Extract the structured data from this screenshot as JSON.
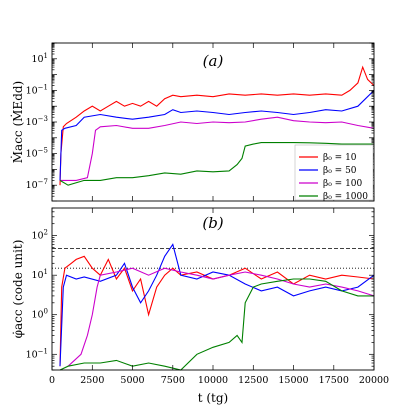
{
  "chart_data": [
    {
      "type": "line",
      "panel_label": "(a)",
      "ylabel": "Ṁacc (ṀEdd)",
      "yscale": "log",
      "xlim": [
        0,
        20000
      ],
      "ylim": [
        1e-08,
        100
      ],
      "yticks": [
        {
          "v": 10,
          "l": "10",
          "e": "1"
        },
        {
          "v": 0.1,
          "l": "10",
          "e": "−1"
        },
        {
          "v": 0.001,
          "l": "10",
          "e": "−3"
        },
        {
          "v": 1e-05,
          "l": "10",
          "e": "−5"
        },
        {
          "v": 1e-07,
          "l": "10",
          "e": "−7"
        }
      ],
      "legend": {
        "placement": "lower-right"
      },
      "series": [
        {
          "name": "β₀ = 10",
          "color": "#ff0000",
          "x": [
            0,
            500,
            550,
            700,
            900,
            1500,
            2000,
            2500,
            3000,
            3500,
            4000,
            4500,
            5000,
            5500,
            6000,
            6500,
            7000,
            7500,
            8000,
            9000,
            10000,
            11000,
            12000,
            13000,
            14000,
            15000,
            16000,
            17000,
            18000,
            18500,
            19000,
            19300,
            19600,
            20000
          ],
          "y": [
            null,
            1e-07,
            1e-05,
            0.0005,
            0.0008,
            0.002,
            0.005,
            0.01,
            0.005,
            0.01,
            0.02,
            0.01,
            0.015,
            0.01,
            0.02,
            0.01,
            0.03,
            0.05,
            0.04,
            0.05,
            0.04,
            0.06,
            0.05,
            0.06,
            0.05,
            0.06,
            0.05,
            0.06,
            0.05,
            0.1,
            0.3,
            3,
            0.5,
            0.2
          ]
        },
        {
          "name": "β₀ = 50",
          "color": "#0000ff",
          "x": [
            0,
            500,
            600,
            800,
            1500,
            2000,
            3000,
            4000,
            5000,
            6000,
            7000,
            7500,
            8000,
            9000,
            10000,
            11000,
            12000,
            13000,
            14000,
            15000,
            16000,
            17000,
            18000,
            19000,
            20000
          ],
          "y": [
            null,
            2e-07,
            0.0003,
            0.0004,
            0.0006,
            0.002,
            0.003,
            0.002,
            0.0015,
            0.002,
            0.003,
            0.006,
            0.004,
            0.005,
            0.004,
            0.003,
            0.004,
            0.005,
            0.004,
            0.003,
            0.004,
            0.006,
            0.005,
            0.01,
            0.1
          ]
        },
        {
          "name": "β₀ = 100",
          "color": "#cc00cc",
          "x": [
            0,
            500,
            1500,
            2200,
            2500,
            2700,
            3000,
            4000,
            5000,
            6000,
            7000,
            8000,
            9000,
            10000,
            11000,
            12000,
            13000,
            14000,
            15000,
            16000,
            17000,
            18000,
            19000,
            20000
          ],
          "y": [
            null,
            2e-07,
            2e-07,
            3e-07,
            1e-05,
            0.0003,
            0.0005,
            0.0006,
            0.0004,
            0.0004,
            0.0006,
            0.001,
            0.0008,
            0.001,
            0.0009,
            0.001,
            0.0015,
            0.002,
            0.0012,
            0.001,
            0.0009,
            0.001,
            0.0006,
            0.0004
          ]
        },
        {
          "name": "β₀ = 1000",
          "color": "#008000",
          "x": [
            0,
            500,
            1000,
            2000,
            3000,
            4000,
            5000,
            6000,
            7000,
            8000,
            9000,
            10000,
            11000,
            11500,
            11800,
            12000,
            12500,
            13000,
            14000,
            15000,
            16000,
            17000,
            18000,
            19000,
            20000
          ],
          "y": [
            null,
            2e-07,
            1e-07,
            2e-07,
            2e-07,
            3e-07,
            3e-07,
            4e-07,
            6e-07,
            5e-07,
            8e-07,
            7e-07,
            8e-07,
            2e-06,
            5e-06,
            3e-05,
            4e-05,
            5e-05,
            5e-05,
            5e-05,
            4.8e-05,
            4.5e-05,
            4e-05,
            4e-05,
            4e-05
          ]
        }
      ]
    },
    {
      "type": "line",
      "panel_label": "(b)",
      "ylabel": "φ̇acc (code unit)",
      "xlabel": "t (tg)",
      "yscale": "log",
      "xlim": [
        0,
        20000
      ],
      "ylim": [
        0.04,
        500
      ],
      "yticks": [
        {
          "v": 100,
          "l": "10",
          "e": "2"
        },
        {
          "v": 10,
          "l": "10",
          "e": "1"
        },
        {
          "v": 1,
          "l": "10",
          "e": "0"
        },
        {
          "v": 0.1,
          "l": "10",
          "e": "−1"
        }
      ],
      "xticks": [
        0,
        2500,
        5000,
        7500,
        10000,
        12500,
        15000,
        17500,
        20000
      ],
      "hlines": [
        {
          "y": 47,
          "style": "dashed"
        },
        {
          "y": 15,
          "style": "dotted"
        }
      ],
      "series": [
        {
          "name": "β₀ = 10",
          "color": "#ff0000",
          "x": [
            0,
            500,
            600,
            800,
            1200,
            1500,
            2000,
            2500,
            3000,
            3500,
            4000,
            4500,
            5000,
            5500,
            6000,
            6500,
            7000,
            7500,
            8000,
            9000,
            10000,
            11000,
            12000,
            13000,
            14000,
            15000,
            16000,
            17000,
            18000,
            19000,
            20000
          ],
          "y": [
            null,
            0.05,
            5,
            15,
            20,
            25,
            30,
            15,
            10,
            25,
            8,
            15,
            4,
            8,
            1,
            5,
            10,
            15,
            10,
            12,
            8,
            10,
            15,
            8,
            12,
            6,
            10,
            8,
            10,
            9,
            8
          ]
        },
        {
          "name": "β₀ = 50",
          "color": "#0000ff",
          "x": [
            0,
            500,
            700,
            900,
            1500,
            2000,
            3000,
            4000,
            4500,
            5000,
            5500,
            6000,
            6500,
            7000,
            7500,
            8000,
            9000,
            10000,
            11000,
            12000,
            13000,
            14000,
            15000,
            16000,
            17000,
            18000,
            19000,
            20000
          ],
          "y": [
            null,
            0.05,
            5,
            10,
            8,
            9,
            7,
            10,
            20,
            5,
            2,
            4,
            10,
            30,
            60,
            10,
            8,
            12,
            10,
            6,
            4,
            5,
            3,
            4,
            5,
            4,
            5,
            10
          ]
        },
        {
          "name": "β₀ = 100",
          "color": "#cc00cc",
          "x": [
            0,
            1000,
            1800,
            2200,
            2500,
            2800,
            3000,
            4000,
            5000,
            6000,
            7000,
            8000,
            9000,
            10000,
            11000,
            12000,
            13000,
            14000,
            15000,
            16000,
            17000,
            18000,
            19000,
            20000
          ],
          "y": [
            null,
            0.05,
            0.1,
            0.3,
            1,
            5,
            10,
            12,
            15,
            10,
            15,
            12,
            10,
            8,
            10,
            12,
            10,
            8,
            6,
            5,
            6,
            5,
            4,
            3
          ]
        },
        {
          "name": "β₀ = 1000",
          "color": "#008000",
          "x": [
            0,
            500,
            1000,
            2000,
            3000,
            4000,
            5000,
            6000,
            7000,
            8000,
            9000,
            10000,
            11000,
            11500,
            11800,
            12000,
            12500,
            13000,
            14000,
            15000,
            16000,
            17000,
            18000,
            19000,
            20000
          ],
          "y": [
            null,
            0.04,
            0.05,
            0.06,
            0.06,
            0.07,
            0.05,
            0.06,
            0.05,
            0.04,
            0.1,
            0.15,
            0.2,
            0.3,
            0.2,
            2,
            5,
            6,
            7,
            8,
            8,
            7,
            4,
            3,
            3
          ]
        }
      ]
    }
  ]
}
